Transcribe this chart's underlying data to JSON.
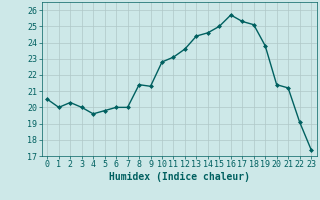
{
  "x": [
    0,
    1,
    2,
    3,
    4,
    5,
    6,
    7,
    8,
    9,
    10,
    11,
    12,
    13,
    14,
    15,
    16,
    17,
    18,
    19,
    20,
    21,
    22,
    23
  ],
  "y": [
    20.5,
    20.0,
    20.3,
    20.0,
    19.6,
    19.8,
    20.0,
    20.0,
    21.4,
    21.3,
    22.8,
    23.1,
    23.6,
    24.4,
    24.6,
    25.0,
    25.7,
    25.3,
    25.1,
    23.8,
    21.4,
    21.2,
    19.1,
    17.4
  ],
  "line_color": "#006060",
  "marker": "D",
  "markersize": 2.0,
  "linewidth": 1.0,
  "xlabel": "Humidex (Indice chaleur)",
  "xlabel_fontsize": 7,
  "tick_fontsize": 6.0,
  "tick_color": "#006060",
  "ylim": [
    17,
    26.5
  ],
  "xlim": [
    -0.5,
    23.5
  ],
  "yticks": [
    17,
    18,
    19,
    20,
    21,
    22,
    23,
    24,
    25,
    26
  ],
  "xticks": [
    0,
    1,
    2,
    3,
    4,
    5,
    6,
    7,
    8,
    9,
    10,
    11,
    12,
    13,
    14,
    15,
    16,
    17,
    18,
    19,
    20,
    21,
    22,
    23
  ],
  "background_color": "#cde8e8",
  "grid_color": "#b0c8c8",
  "grid_linewidth": 0.5
}
